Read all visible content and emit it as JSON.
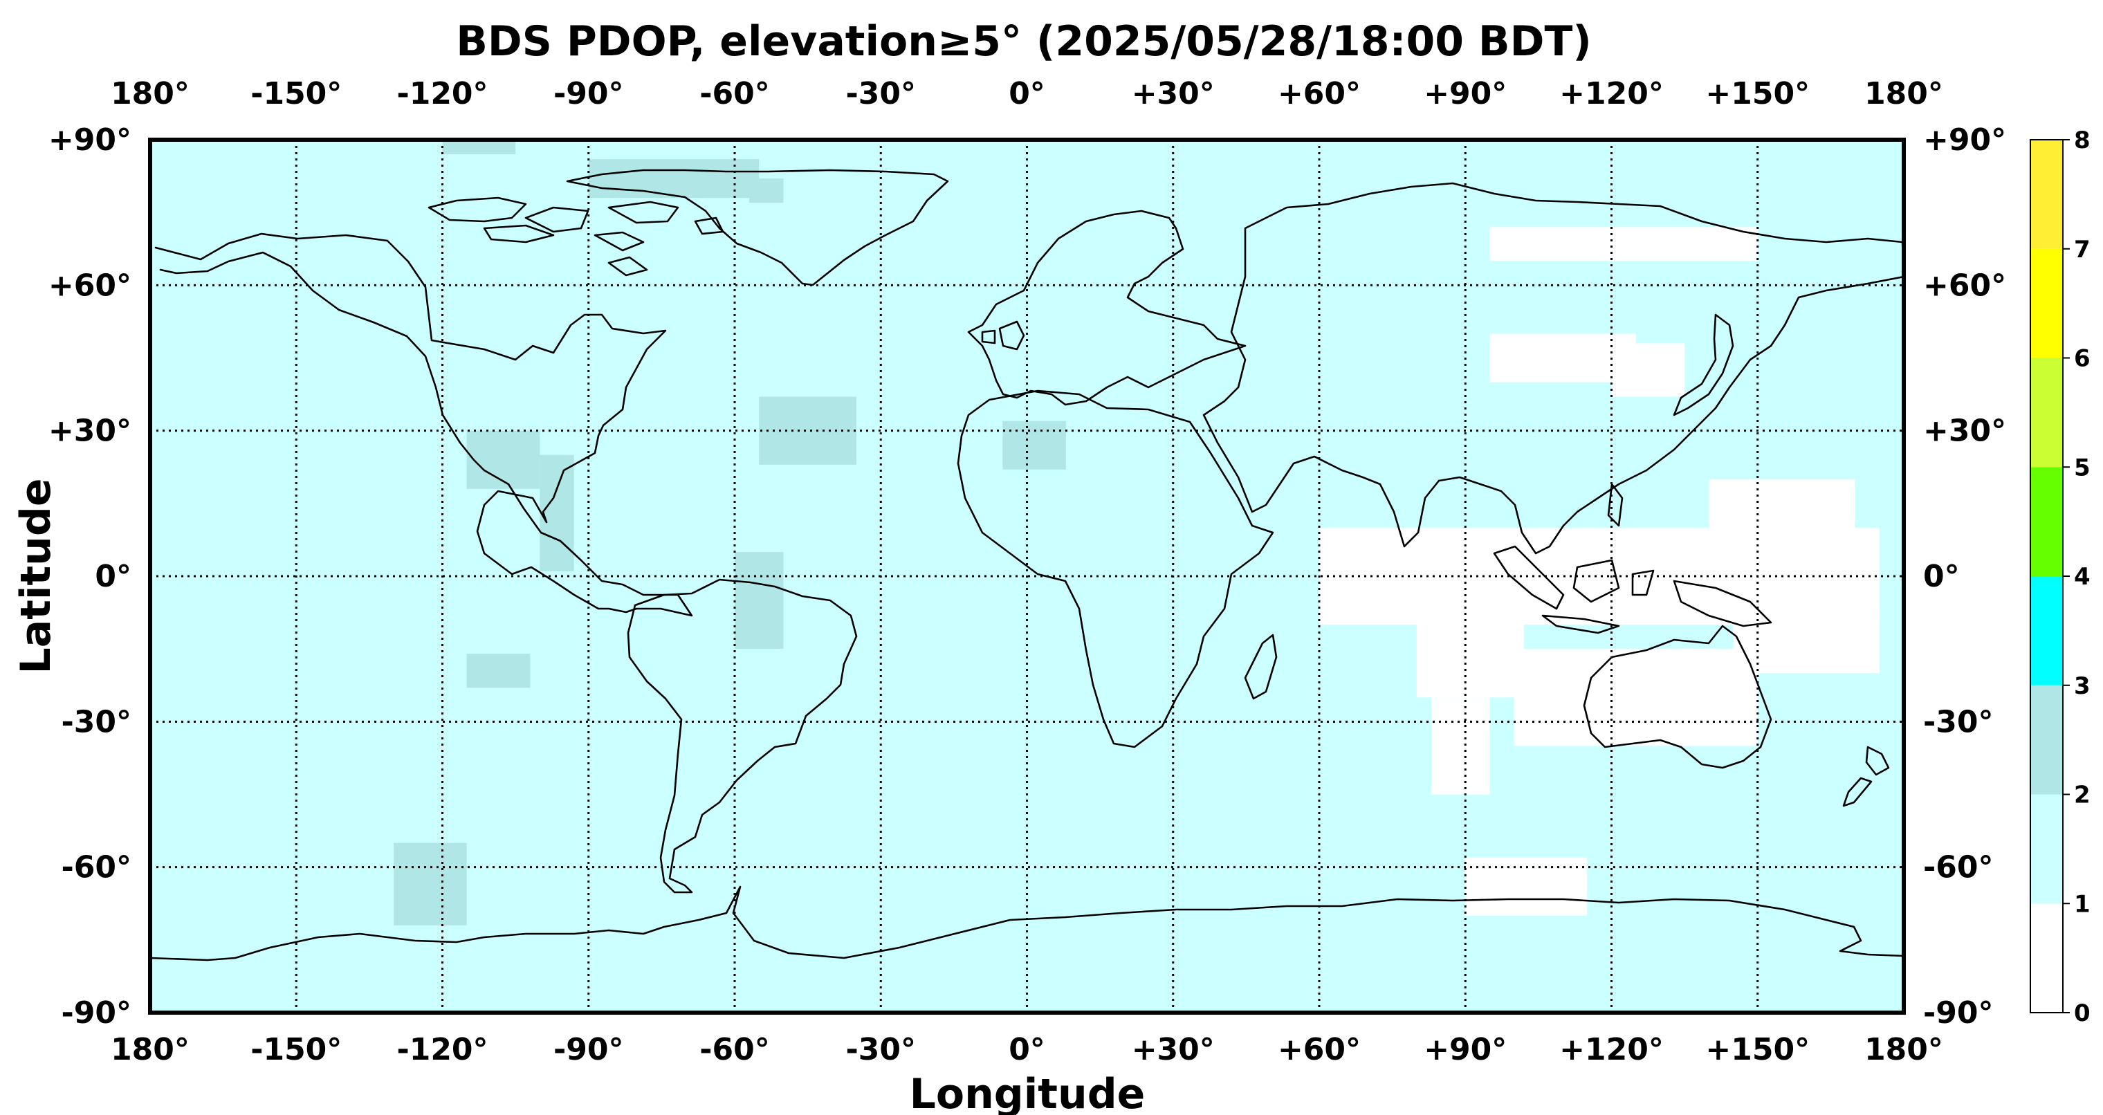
{
  "chart_data": {
    "type": "heatmap",
    "title": "BDS PDOP, elevation≥5° (2025/05/28/18:00 BDT)",
    "xlabel": "Longitude",
    "ylabel": "Latitude",
    "xlim": [
      -180,
      180
    ],
    "ylim": [
      -90,
      90
    ],
    "x_ticks": [
      -180,
      -150,
      -120,
      -90,
      -60,
      -30,
      0,
      30,
      60,
      90,
      120,
      150,
      180
    ],
    "x_tick_labels": [
      "180°",
      "-150°",
      "-120°",
      "-90°",
      "-60°",
      "-30°",
      "0°",
      "+30°",
      "+60°",
      "+90°",
      "+120°",
      "+150°",
      "180°"
    ],
    "y_ticks": [
      90,
      60,
      30,
      0,
      -30,
      -60,
      -90
    ],
    "y_tick_labels": [
      "+90°",
      "+60°",
      "+30°",
      "0°",
      "-30°",
      "-60°",
      "-90°"
    ],
    "grid": true,
    "background_value_range": [
      1,
      2
    ],
    "colorbar": {
      "min": 0,
      "max": 8,
      "ticks": [
        "0",
        "1",
        "2",
        "3",
        "4",
        "5",
        "6",
        "7",
        "8"
      ],
      "bins": [
        {
          "from": 0,
          "to": 1,
          "color": "#ffffff"
        },
        {
          "from": 1,
          "to": 2,
          "color": "#ccffff"
        },
        {
          "from": 2,
          "to": 3,
          "color": "#b0e6e6"
        },
        {
          "from": 3,
          "to": 4,
          "color": "#00ffff"
        },
        {
          "from": 4,
          "to": 5,
          "color": "#66ff00"
        },
        {
          "from": 5,
          "to": 6,
          "color": "#ccff33"
        },
        {
          "from": 6,
          "to": 7,
          "color": "#ffff00"
        },
        {
          "from": 7,
          "to": 8,
          "color": "#ffee33"
        }
      ]
    },
    "regions": [
      {
        "value_range": [
          2,
          3
        ],
        "bounds": {
          "lon": [
            -120,
            -105
          ],
          "lat": [
            87,
            90
          ]
        }
      },
      {
        "value_range": [
          2,
          3
        ],
        "bounds": {
          "lon": [
            -90,
            -55
          ],
          "lat": [
            78,
            86
          ]
        }
      },
      {
        "value_range": [
          2,
          3
        ],
        "bounds": {
          "lon": [
            -57,
            -50
          ],
          "lat": [
            77,
            82
          ]
        }
      },
      {
        "value_range": [
          2,
          3
        ],
        "bounds": {
          "lon": [
            -115,
            -100
          ],
          "lat": [
            18,
            30
          ]
        }
      },
      {
        "value_range": [
          2,
          3
        ],
        "bounds": {
          "lon": [
            -100,
            -93
          ],
          "lat": [
            1,
            25
          ]
        }
      },
      {
        "value_range": [
          2,
          3
        ],
        "bounds": {
          "lon": [
            -55,
            -35
          ],
          "lat": [
            23,
            37
          ]
        }
      },
      {
        "value_range": [
          2,
          3
        ],
        "bounds": {
          "lon": [
            -5,
            8
          ],
          "lat": [
            22,
            32
          ]
        }
      },
      {
        "value_range": [
          2,
          3
        ],
        "bounds": {
          "lon": [
            -60,
            -50
          ],
          "lat": [
            -15,
            5
          ]
        }
      },
      {
        "value_range": [
          2,
          3
        ],
        "bounds": {
          "lon": [
            -115,
            -102
          ],
          "lat": [
            -23,
            -16
          ]
        }
      },
      {
        "value_range": [
          2,
          3
        ],
        "bounds": {
          "lon": [
            -130,
            -115
          ],
          "lat": [
            -72,
            -55
          ]
        }
      },
      {
        "value_range": [
          0,
          1
        ],
        "bounds": {
          "lon": [
            95,
            150
          ],
          "lat": [
            65,
            72
          ]
        }
      },
      {
        "value_range": [
          0,
          1
        ],
        "bounds": {
          "lon": [
            95,
            125
          ],
          "lat": [
            40,
            50
          ]
        }
      },
      {
        "value_range": [
          0,
          1
        ],
        "bounds": {
          "lon": [
            120,
            135
          ],
          "lat": [
            37,
            48
          ]
        }
      },
      {
        "value_range": [
          0,
          1
        ],
        "bounds": {
          "lon": [
            60,
            175
          ],
          "lat": [
            -10,
            10
          ]
        }
      },
      {
        "value_range": [
          0,
          1
        ],
        "bounds": {
          "lon": [
            65,
            80
          ],
          "lat": [
            -10,
            0
          ]
        }
      },
      {
        "value_range": [
          0,
          1
        ],
        "bounds": {
          "lon": [
            80,
            102
          ],
          "lat": [
            -25,
            -5
          ]
        }
      },
      {
        "value_range": [
          0,
          1
        ],
        "bounds": {
          "lon": [
            100,
            150
          ],
          "lat": [
            -35,
            -15
          ]
        }
      },
      {
        "value_range": [
          0,
          1
        ],
        "bounds": {
          "lon": [
            140,
            170
          ],
          "lat": [
            10,
            20
          ]
        }
      },
      {
        "value_range": [
          0,
          1
        ],
        "bounds": {
          "lon": [
            145,
            175
          ],
          "lat": [
            -20,
            -5
          ]
        }
      },
      {
        "value_range": [
          0,
          1
        ],
        "bounds": {
          "lon": [
            83,
            95
          ],
          "lat": [
            -45,
            -25
          ]
        }
      },
      {
        "value_range": [
          0,
          1
        ],
        "bounds": {
          "lon": [
            90,
            115
          ],
          "lat": [
            -70,
            -58
          ]
        }
      }
    ]
  }
}
